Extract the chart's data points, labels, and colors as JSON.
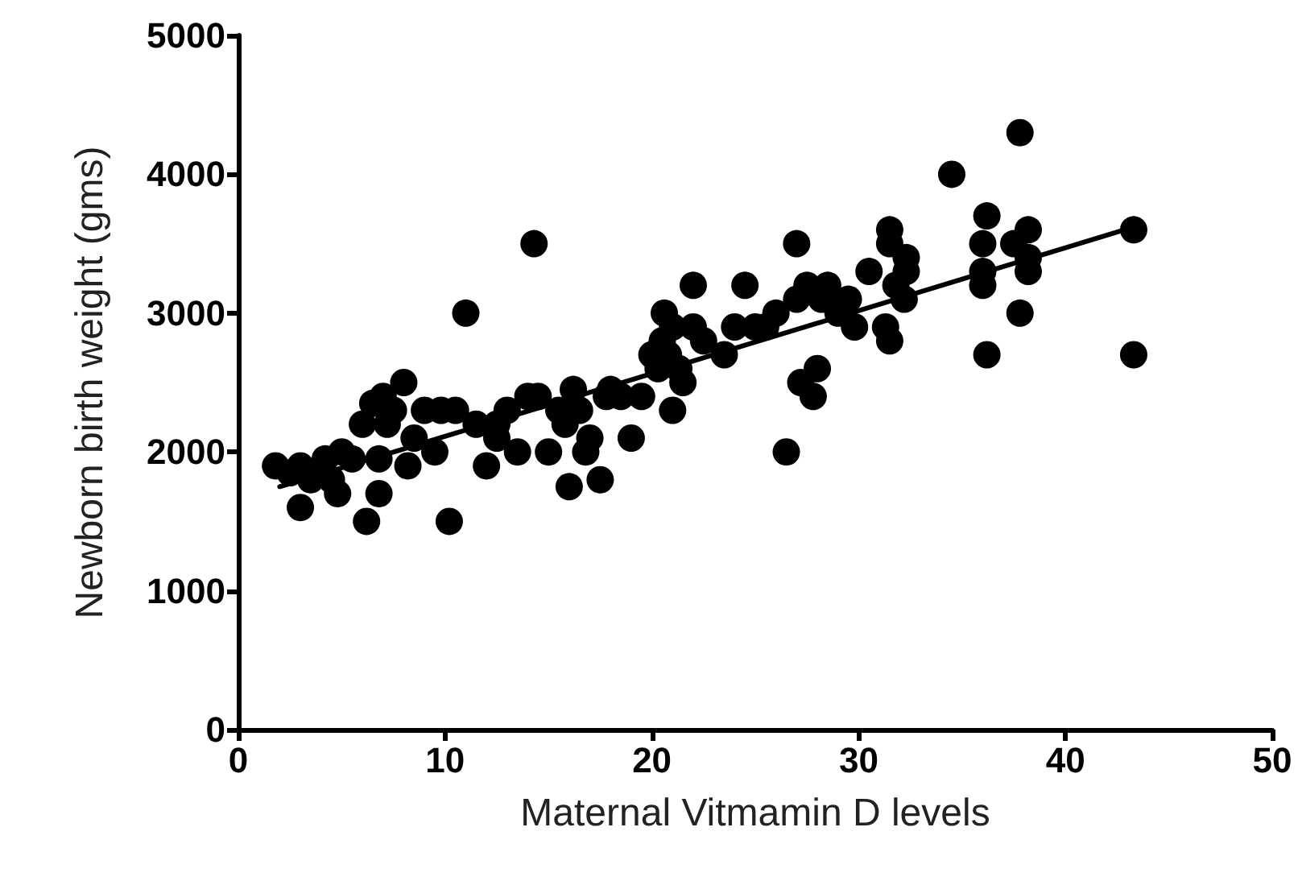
{
  "chart_data": {
    "type": "scatter",
    "xlabel": "Maternal Vitmamin D levels",
    "ylabel": "Newborn birth weight (gms)",
    "xlim": [
      0,
      50
    ],
    "xticks": [
      0,
      10,
      20,
      30,
      40,
      50
    ],
    "ylim": [
      0,
      5000
    ],
    "yticks": [
      0,
      1000,
      2000,
      3000,
      4000,
      5000
    ],
    "grid": false,
    "marker": "circle",
    "series": [
      {
        "color": "#000000",
        "x": [
          1.8,
          2.5,
          3,
          3,
          3.5,
          4.2,
          4.5,
          4.8,
          5,
          5.5,
          6,
          6.2,
          6.5,
          6.8,
          6.8,
          7,
          7.2,
          7.5,
          8,
          8.2,
          8.5,
          9,
          9.5,
          9.8,
          10.2,
          10.5,
          11,
          11.5,
          12,
          12.5,
          12.5,
          13,
          13.5,
          14,
          14.3,
          14.5,
          15,
          15.5,
          15.8,
          16,
          16.2,
          16.5,
          16.8,
          17,
          17.5,
          17.8,
          18,
          18.5,
          19,
          19.5,
          20,
          20.3,
          20.5,
          20.6,
          20.8,
          21,
          21,
          21.3,
          21.5,
          22,
          22,
          22.5,
          23.5,
          24,
          24.5,
          25,
          25.5,
          26,
          26.5,
          27,
          27,
          27.2,
          27.5,
          27.8,
          28,
          28.2,
          28.5,
          29,
          29.5,
          29.8,
          30.5,
          31.3,
          31.5,
          31.5,
          31.5,
          31.8,
          32.2,
          32.3,
          32.3,
          34.5,
          36,
          36,
          36,
          36.2,
          36.2,
          37.5,
          37.8,
          37.8,
          38.2,
          38.2,
          38.2,
          43.3,
          43.3
        ],
        "values": [
          1900,
          1850,
          1600,
          1900,
          1800,
          1950,
          1800,
          1700,
          2000,
          1950,
          2200,
          1500,
          2350,
          1700,
          1950,
          2400,
          2200,
          2300,
          2500,
          1900,
          2100,
          2300,
          2000,
          2300,
          1500,
          2300,
          3000,
          2200,
          1900,
          2100,
          2200,
          2300,
          2000,
          2400,
          3500,
          2400,
          2000,
          2300,
          2200,
          1750,
          2450,
          2300,
          2000,
          2100,
          1800,
          2400,
          2450,
          2400,
          2100,
          2400,
          2700,
          2600,
          2800,
          3000,
          2700,
          2900,
          2300,
          2600,
          2500,
          3200,
          2900,
          2800,
          2700,
          2900,
          3200,
          2900,
          2900,
          3000,
          2000,
          3100,
          3500,
          2500,
          3200,
          2400,
          2600,
          3100,
          3200,
          3000,
          3100,
          2900,
          3300,
          2900,
          2800,
          3500,
          3600,
          3200,
          3100,
          3400,
          3300,
          4000,
          3500,
          3300,
          3200,
          2700,
          3700,
          3500,
          3000,
          4300,
          3600,
          3400,
          3300,
          3600,
          2700
        ]
      },
      {
        "type": "line",
        "color": "#000000",
        "marker": "none",
        "line_style": "solid",
        "x": [
          2,
          43.3
        ],
        "values": [
          1750,
          3620
        ]
      }
    ]
  }
}
